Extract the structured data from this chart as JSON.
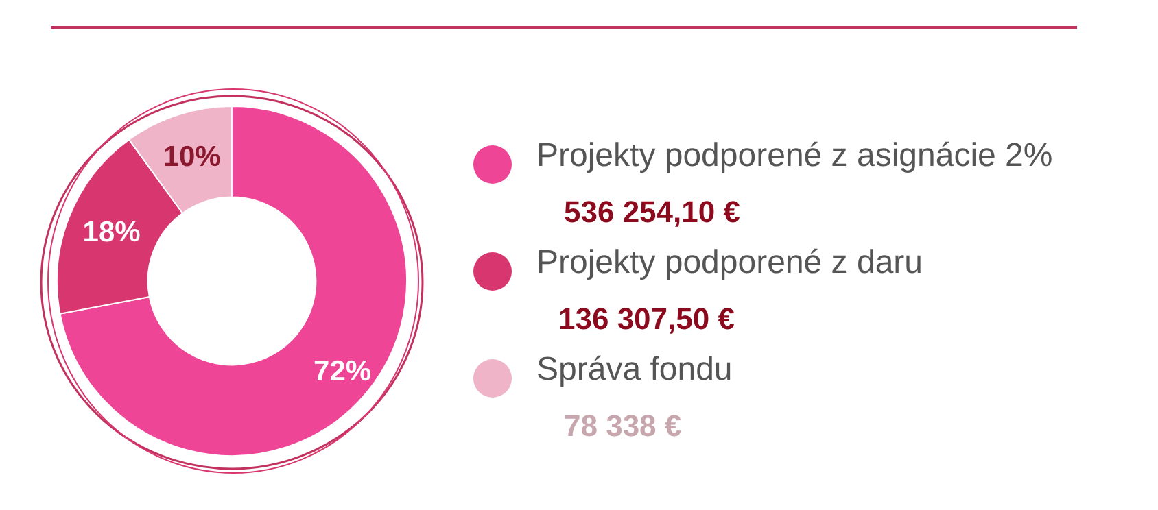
{
  "chart_data": {
    "type": "donut",
    "categories": [
      "Projekty podporené z asignácie 2%",
      "Projekty podporené z daru",
      "Správa fondu"
    ],
    "values": [
      72,
      18,
      10
    ],
    "colors": [
      "#ef4596",
      "#d8366f",
      "#efb4c7"
    ],
    "value_labels": [
      "72%",
      "18%",
      "10%"
    ],
    "annotations": [
      "536 254,10 €",
      "136 307,50  €",
      "78 338 €"
    ],
    "legend": "right"
  }
}
